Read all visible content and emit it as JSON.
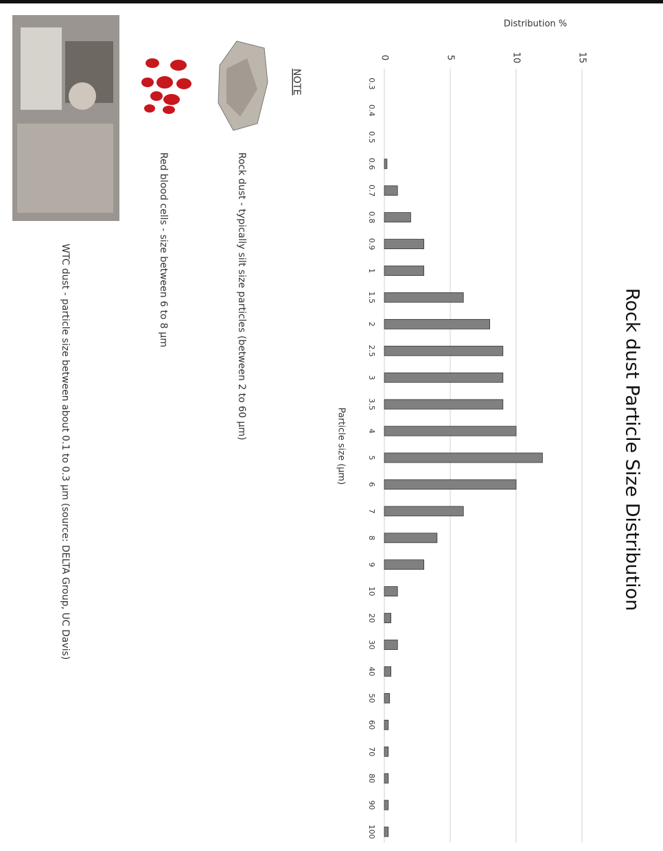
{
  "chart_data": {
    "type": "bar",
    "title": "Rock dust Particle Size Distribution",
    "y_label": "Distribution %",
    "x_label": "Particle size (µm)",
    "categories": [
      "0.3",
      "0.4",
      "0.5",
      "0.6",
      "0.7",
      "0.8",
      "0.9",
      "1",
      "1.5",
      "2",
      "2.5",
      "3",
      "3.5",
      "4",
      "5",
      "6",
      "7",
      "8",
      "9",
      "10",
      "20",
      "30",
      "40",
      "50",
      "60",
      "70",
      "80",
      "90",
      "100"
    ],
    "values": [
      0,
      0,
      0,
      0.2,
      1,
      2,
      3,
      3,
      6,
      8,
      9,
      9,
      9,
      10,
      12,
      10,
      6,
      4,
      3,
      1,
      0.5,
      1,
      0.5,
      0.4,
      0.3,
      0.3,
      0.3,
      0.3,
      0.3
    ],
    "color": "#808080",
    "ylim": [
      0,
      15
    ],
    "yticks": [
      0,
      5,
      10,
      15
    ],
    "grid": true
  },
  "notes": {
    "heading": "NOTE",
    "rock_dust": "Rock dust - typically silt size particles (between 2 to 60 µm)",
    "red_blood_cells": "Red blood cells - size between 6 to 8 µm",
    "wtc_dust": "WTC dust - particle size between about 0.1 to 0.3 µm  (source: DELTA Group, UC Davis)"
  }
}
